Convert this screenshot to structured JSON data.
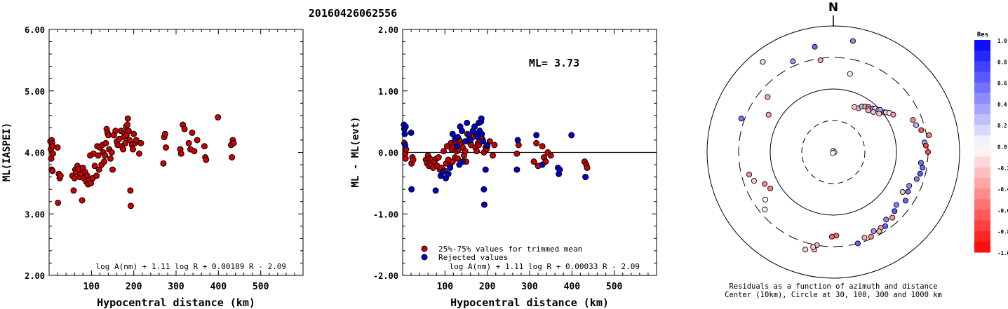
{
  "title": "20160426062556",
  "chart_data": [
    {
      "type": "scatter",
      "ylabel": "ML(IASPEI)",
      "xlabel": "Hypocentral distance (km)",
      "xlim": [
        0,
        600
      ],
      "ylim": [
        2.0,
        6.0
      ],
      "xticks": [
        "100",
        "200",
        "300",
        "400",
        "500"
      ],
      "yticks": [
        "2.00",
        "3.00",
        "4.00",
        "5.00",
        "6.00"
      ],
      "formula": "log A(nm) + 1.11 log R + 0.00189 R - 2.09",
      "marker_color": "#cc0000",
      "points": [
        [
          3,
          4.18
        ],
        [
          4,
          4.05
        ],
        [
          5,
          3.9
        ],
        [
          6,
          4.2
        ],
        [
          6,
          3.72
        ],
        [
          7,
          4.15
        ],
        [
          8,
          3.7
        ],
        [
          8,
          4.1
        ],
        [
          9,
          3.98
        ],
        [
          20,
          4.08
        ],
        [
          21,
          3.18
        ],
        [
          23,
          3.65
        ],
        [
          25,
          3.58
        ],
        [
          27,
          3.62
        ],
        [
          55,
          3.62
        ],
        [
          58,
          3.38
        ],
        [
          60,
          3.58
        ],
        [
          62,
          3.72
        ],
        [
          64,
          3.68
        ],
        [
          67,
          3.78
        ],
        [
          69,
          3.73
        ],
        [
          72,
          3.6
        ],
        [
          75,
          3.65
        ],
        [
          78,
          3.22
        ],
        [
          80,
          3.75
        ],
        [
          82,
          3.58
        ],
        [
          85,
          3.68
        ],
        [
          88,
          3.52
        ],
        [
          90,
          3.62
        ],
        [
          92,
          3.48
        ],
        [
          95,
          3.55
        ],
        [
          97,
          3.95
        ],
        [
          99,
          3.5
        ],
        [
          103,
          3.58
        ],
        [
          105,
          3.98
        ],
        [
          108,
          3.78
        ],
        [
          112,
          3.62
        ],
        [
          114,
          4.1
        ],
        [
          116,
          3.95
        ],
        [
          118,
          3.72
        ],
        [
          120,
          4.08
        ],
        [
          124,
          3.8
        ],
        [
          126,
          4.12
        ],
        [
          128,
          4.0
        ],
        [
          130,
          3.85
        ],
        [
          132,
          3.95
        ],
        [
          134,
          4.15
        ],
        [
          136,
          4.38
        ],
        [
          138,
          4.32
        ],
        [
          140,
          4.28
        ],
        [
          142,
          4.05
        ],
        [
          145,
          3.9
        ],
        [
          148,
          4.0
        ],
        [
          150,
          3.72
        ],
        [
          153,
          4.28
        ],
        [
          157,
          4.35
        ],
        [
          160,
          4.18
        ],
        [
          162,
          4.12
        ],
        [
          166,
          4.22
        ],
        [
          170,
          4.35
        ],
        [
          172,
          4.1
        ],
        [
          175,
          4.05
        ],
        [
          177,
          4.25
        ],
        [
          178,
          4.32
        ],
        [
          180,
          4.15
        ],
        [
          182,
          4.42
        ],
        [
          183,
          4.28
        ],
        [
          185,
          4.45
        ],
        [
          186,
          4.55
        ],
        [
          188,
          4.35
        ],
        [
          190,
          4.2
        ],
        [
          192,
          3.38
        ],
        [
          193,
          3.13
        ],
        [
          196,
          4.12
        ],
        [
          198,
          4.05
        ],
        [
          200,
          4.3
        ],
        [
          203,
          4.15
        ],
        [
          206,
          4.2
        ],
        [
          213,
          3.98
        ],
        [
          217,
          4.15
        ],
        [
          270,
          3.82
        ],
        [
          272,
          4.25
        ],
        [
          274,
          4.3
        ],
        [
          276,
          4.08
        ],
        [
          310,
          4.05
        ],
        [
          312,
          3.98
        ],
        [
          316,
          4.45
        ],
        [
          320,
          4.38
        ],
        [
          330,
          4.15
        ],
        [
          334,
          4.05
        ],
        [
          338,
          4.32
        ],
        [
          343,
          4.02
        ],
        [
          350,
          4.2
        ],
        [
          367,
          4.1
        ],
        [
          369,
          3.92
        ],
        [
          371,
          3.88
        ],
        [
          399,
          4.57
        ],
        [
          430,
          4.12
        ],
        [
          432,
          3.92
        ],
        [
          434,
          4.2
        ],
        [
          436,
          4.15
        ]
      ]
    },
    {
      "type": "scatter",
      "ylabel": "ML - ML(evt)",
      "xlabel": "Hypocentral distance (km)",
      "xlim": [
        0,
        600
      ],
      "ylim": [
        -2.0,
        2.0
      ],
      "xticks": [
        "100",
        "200",
        "300",
        "400",
        "500"
      ],
      "yticks": [
        "-2.00",
        "-1.00",
        "0.00",
        "1.00",
        "2.00"
      ],
      "annotation": "ML= 3.73",
      "formula": "log A(nm) + 1.11 log R + 0.00033 R - 2.09",
      "legend": [
        "25%-75% values for trimmed mean",
        "Rejected values"
      ],
      "series": [
        {
          "name": "25%-75% values for trimmed mean",
          "color": "#cc0000",
          "points": [
            [
              4,
              0.15
            ],
            [
              6,
              -0.02
            ],
            [
              7,
              -0.1
            ],
            [
              8,
              0.05
            ],
            [
              21,
              -0.18
            ],
            [
              23,
              -0.08
            ],
            [
              25,
              -0.12
            ],
            [
              55,
              -0.12
            ],
            [
              58,
              -0.18
            ],
            [
              60,
              -0.05
            ],
            [
              62,
              -0.22
            ],
            [
              64,
              -0.1
            ],
            [
              67,
              -0.2
            ],
            [
              69,
              -0.12
            ],
            [
              72,
              -0.25
            ],
            [
              75,
              -0.15
            ],
            [
              80,
              -0.1
            ],
            [
              82,
              -0.22
            ],
            [
              85,
              -0.08
            ],
            [
              88,
              -0.28
            ],
            [
              92,
              -0.25
            ],
            [
              97,
              0.02
            ],
            [
              99,
              -0.3
            ],
            [
              103,
              -0.18
            ],
            [
              105,
              0.1
            ],
            [
              108,
              -0.12
            ],
            [
              112,
              -0.22
            ],
            [
              114,
              0.15
            ],
            [
              116,
              0.05
            ],
            [
              118,
              -0.15
            ],
            [
              120,
              0.1
            ],
            [
              124,
              -0.08
            ],
            [
              126,
              0.15
            ],
            [
              128,
              0.02
            ],
            [
              130,
              -0.1
            ],
            [
              132,
              0.05
            ],
            [
              134,
              0.2
            ],
            [
              138,
              0.12
            ],
            [
              142,
              0.08
            ],
            [
              145,
              -0.05
            ],
            [
              148,
              0.02
            ],
            [
              150,
              -0.15
            ],
            [
              153,
              0.3
            ],
            [
              157,
              0.2
            ],
            [
              160,
              0.15
            ],
            [
              162,
              0.12
            ],
            [
              166,
              0.25
            ],
            [
              172,
              0.08
            ],
            [
              175,
              0.02
            ],
            [
              178,
              0.15
            ],
            [
              180,
              0.12
            ],
            [
              183,
              0.2
            ],
            [
              188,
              0.22
            ],
            [
              192,
              0.0
            ],
            [
              196,
              0.08
            ],
            [
              198,
              0.05
            ],
            [
              200,
              0.1
            ],
            [
              206,
              0.18
            ],
            [
              213,
              -0.05
            ],
            [
              217,
              0.12
            ],
            [
              270,
              -0.02
            ],
            [
              274,
              0.12
            ],
            [
              310,
              -0.15
            ],
            [
              316,
              0.15
            ],
            [
              320,
              -0.22
            ],
            [
              330,
              0.1
            ],
            [
              334,
              -0.08
            ],
            [
              338,
              -0.15
            ],
            [
              343,
              0.0
            ],
            [
              350,
              -0.05
            ],
            [
              430,
              -0.15
            ],
            [
              434,
              -0.2
            ],
            [
              436,
              -0.25
            ]
          ]
        },
        {
          "name": "Rejected values",
          "color": "#0000cc",
          "points": [
            [
              3,
              0.45
            ],
            [
              4,
              0.38
            ],
            [
              5,
              0.3
            ],
            [
              6,
              0.12
            ],
            [
              7,
              0.42
            ],
            [
              20,
              0.32
            ],
            [
              21,
              -0.6
            ],
            [
              78,
              -0.62
            ],
            [
              90,
              -0.38
            ],
            [
              95,
              -0.32
            ],
            [
              102,
              -0.42
            ],
            [
              108,
              -0.35
            ],
            [
              112,
              -0.25
            ],
            [
              118,
              0.3
            ],
            [
              124,
              0.22
            ],
            [
              128,
              0.1
            ],
            [
              130,
              0.25
            ],
            [
              134,
              -0.2
            ],
            [
              136,
              0.42
            ],
            [
              140,
              0.35
            ],
            [
              142,
              -0.15
            ],
            [
              148,
              0.18
            ],
            [
              152,
              0.48
            ],
            [
              156,
              0.28
            ],
            [
              160,
              0.2
            ],
            [
              166,
              0.35
            ],
            [
              170,
              0.42
            ],
            [
              175,
              0.3
            ],
            [
              177,
              0.25
            ],
            [
              180,
              0.48
            ],
            [
              182,
              0.35
            ],
            [
              185,
              0.5
            ],
            [
              186,
              0.55
            ],
            [
              187,
              0.3
            ],
            [
              190,
              0.18
            ],
            [
              192,
              -0.6
            ],
            [
              193,
              -0.85
            ],
            [
              196,
              -0.28
            ],
            [
              200,
              0.12
            ],
            [
              270,
              -0.28
            ],
            [
              272,
              0.2
            ],
            [
              316,
              0.28
            ],
            [
              330,
              -0.2
            ],
            [
              367,
              -0.25
            ],
            [
              369,
              -0.35
            ],
            [
              371,
              -0.28
            ],
            [
              399,
              0.28
            ],
            [
              432,
              -0.4
            ]
          ]
        }
      ]
    },
    {
      "type": "scatter",
      "label": "N",
      "caption_line1": "Residuals as a function of azimuth and distance",
      "caption_line2": "Center (10km), Circle at 30, 100, 300 and 1000 km",
      "colorbar_title": "Res",
      "colorbar_ticks": [
        "1.0",
        "0.8",
        "0.6",
        "0.4",
        "0.2",
        "0.0",
        "-0.2",
        "-0.4",
        "-0.6",
        "-0.8",
        "-1.0"
      ],
      "ring_distances_km": [
        30,
        100,
        300,
        1000
      ],
      "points": [
        [
          0,
          1.2,
          0.0
        ],
        [
          0,
          4.0,
          0.0
        ],
        [
          100,
          4.0,
          0.0
        ],
        [
          200,
          4.0,
          0.0
        ],
        [
          10,
          600,
          0.45
        ],
        [
          -8,
          280,
          -0.35
        ],
        [
          -10,
          480,
          0.6
        ],
        [
          12,
          180,
          0.08
        ],
        [
          25,
          60,
          -0.2
        ],
        [
          30,
          62,
          -0.3
        ],
        [
          32,
          70,
          0.3
        ],
        [
          35,
          75,
          -0.4
        ],
        [
          38,
          80,
          -0.5
        ],
        [
          39,
          75,
          0.15
        ],
        [
          40,
          72,
          -0.35
        ],
        [
          42,
          85,
          0.45
        ],
        [
          44,
          90,
          -0.15
        ],
        [
          45,
          78,
          0.2
        ],
        [
          47,
          95,
          -0.3
        ],
        [
          48,
          100,
          0.35
        ],
        [
          50,
          88,
          -0.25
        ],
        [
          52,
          105,
          0.5
        ],
        [
          53,
          110,
          -0.2
        ],
        [
          55,
          120,
          0.1
        ],
        [
          58,
          130,
          -0.4
        ],
        [
          68,
          220,
          -0.5
        ],
        [
          72,
          230,
          0.3
        ],
        [
          76,
          260,
          -0.65
        ],
        [
          80,
          330,
          -0.55
        ],
        [
          84,
          270,
          0.4
        ],
        [
          86,
          280,
          -0.75
        ],
        [
          90,
          300,
          -0.7
        ],
        [
          97,
          240,
          0.55
        ],
        [
          100,
          260,
          0.6
        ],
        [
          104,
          250,
          0.65
        ],
        [
          108,
          235,
          0.5
        ],
        [
          114,
          200,
          0.45
        ],
        [
          118,
          210,
          0.55
        ],
        [
          120,
          180,
          -0.25
        ],
        [
          124,
          230,
          0.6
        ],
        [
          130,
          195,
          0.5
        ],
        [
          134,
          215,
          0.65
        ],
        [
          138,
          240,
          -0.4
        ],
        [
          142,
          220,
          0.45
        ],
        [
          145,
          260,
          0.6
        ],
        [
          148,
          250,
          -0.35
        ],
        [
          150,
          270,
          -0.3
        ],
        [
          153,
          245,
          0.4
        ],
        [
          156,
          280,
          -0.45
        ],
        [
          160,
          265,
          -0.3
        ],
        [
          165,
          300,
          0.6
        ],
        [
          178,
          205,
          -0.6
        ],
        [
          181,
          212,
          -0.6
        ],
        [
          190,
          300,
          -0.3
        ],
        [
          191,
          360,
          -0.3
        ],
        [
          192,
          330,
          -0.2
        ],
        [
          196,
          390,
          -0.2
        ],
        [
          230,
          250,
          -0.1
        ],
        [
          235,
          200,
          0.0
        ],
        [
          240,
          140,
          -0.5
        ],
        [
          245,
          155,
          -0.5
        ],
        [
          250,
          210,
          -0.2
        ],
        [
          255,
          230,
          -0.45
        ],
        [
          290,
          340,
          0.55
        ],
        [
          300,
          150,
          -0.35
        ],
        [
          310,
          220,
          -0.35
        ],
        [
          322,
          640,
          0.15
        ],
        [
          336,
          360,
          0.4
        ]
      ]
    }
  ]
}
